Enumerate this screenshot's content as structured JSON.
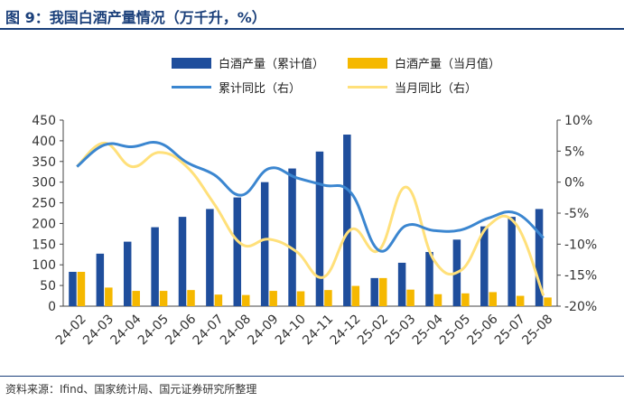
{
  "title": "图 9：我国白酒产量情况（万千升，%）",
  "source": "资料来源：Ifind、国家统计局、国元证券研究所整理",
  "colors": {
    "title": "#1a3f7a",
    "cumulative_bar": "#1f4e9c",
    "monthly_bar": "#f5b800",
    "cumulative_yoy_line": "#3b86d0",
    "monthly_yoy_line": "#ffe07a"
  },
  "legend": {
    "cumulative_bar": "白酒产量（累计值）",
    "monthly_bar": "白酒产量（当月值）",
    "cumulative_yoy": "累计同比（右）",
    "monthly_yoy": "当月同比（右）"
  },
  "chart_data": {
    "type": "bar",
    "categories": [
      "24-02",
      "24-03",
      "24-04",
      "24-05",
      "24-06",
      "24-07",
      "24-08",
      "24-09",
      "24-10",
      "24-11",
      "24-12",
      "25-02",
      "25-03",
      "25-04",
      "25-05",
      "25-06",
      "25-07",
      "25-08"
    ],
    "series": [
      {
        "name": "白酒产量（累计值）",
        "type": "bar",
        "axis": "left",
        "values": [
          83,
          127,
          156,
          191,
          216,
          235,
          263,
          300,
          333,
          374,
          415,
          68,
          105,
          131,
          161,
          193,
          216,
          235
        ]
      },
      {
        "name": "白酒产量（当月值）",
        "type": "bar",
        "axis": "left",
        "values": [
          83,
          45,
          37,
          37,
          39,
          28,
          27,
          37,
          36,
          39,
          49,
          68,
          40,
          29,
          31,
          34,
          25,
          21
        ]
      },
      {
        "name": "累计同比（右）",
        "type": "line",
        "axis": "right",
        "values": [
          2.5,
          6.0,
          5.7,
          6.3,
          3.2,
          1.2,
          -2.1,
          2.2,
          0.7,
          -0.5,
          -1.8,
          -11.0,
          -7.0,
          -7.8,
          -7.7,
          -5.8,
          -5.0,
          -9.0
        ]
      },
      {
        "name": "当月同比（右）",
        "type": "line",
        "axis": "right",
        "values": [
          2.5,
          6.3,
          2.5,
          4.8,
          2.5,
          -3.5,
          -10.0,
          -9.2,
          -11.2,
          -15.3,
          -7.6,
          -11.0,
          -0.8,
          -12.5,
          -14.2,
          -7.0,
          -6.8,
          -18.3
        ]
      }
    ],
    "y_left": {
      "ylim": [
        0,
        450
      ],
      "ticks": [
        0,
        50,
        100,
        150,
        200,
        250,
        300,
        350,
        400,
        450
      ]
    },
    "y_right": {
      "ylim": [
        -20,
        10
      ],
      "ticks": [
        "-20%",
        "-15%",
        "-10%",
        "-5%",
        "0%",
        "5%",
        "10%"
      ]
    },
    "grid": false,
    "legend_position": "top"
  }
}
